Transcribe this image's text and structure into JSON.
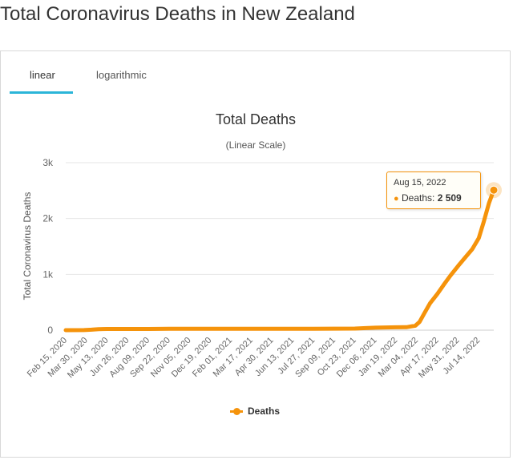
{
  "page": {
    "title": "Total Coronavirus Deaths in New Zealand"
  },
  "tabs": [
    {
      "label": "linear",
      "active": true
    },
    {
      "label": "logarithmic",
      "active": false
    }
  ],
  "colors": {
    "series": "#f5930b",
    "tab_accent": "#2bb5d8"
  },
  "tooltip": {
    "date": "Aug 15, 2022",
    "series_label": "Deaths:",
    "value": "2 509"
  },
  "chart_data": {
    "type": "line",
    "title": "Total Deaths",
    "subtitle": "(Linear Scale)",
    "ylabel": "Total Coronavirus Deaths",
    "xlabel": "",
    "ylim": [
      0,
      3000
    ],
    "yticks": [
      0,
      1000,
      2000,
      3000
    ],
    "ytick_labels": [
      "0",
      "1k",
      "2k",
      "3k"
    ],
    "xtick_labels": [
      "Feb 15, 2020",
      "Mar 30, 2020",
      "May 13, 2020",
      "Jun 26, 2020",
      "Aug 09, 2020",
      "Sep 22, 2020",
      "Nov 05, 2020",
      "Dec 19, 2020",
      "Feb 01, 2021",
      "Mar 17, 2021",
      "Apr 30, 2021",
      "Jun 13, 2021",
      "Jul 27, 2021",
      "Sep 09, 2021",
      "Oct 23, 2021",
      "Dec 06, 2021",
      "Jan 19, 2022",
      "Mar 04, 2022",
      "Apr 17, 2022",
      "May 31, 2022",
      "Jul 14, 2022"
    ],
    "grid": true,
    "legend": "bottom",
    "series": [
      {
        "name": "Deaths",
        "points": [
          [
            "2020-02-15",
            0
          ],
          [
            "2020-03-25",
            1
          ],
          [
            "2020-04-10",
            9
          ],
          [
            "2020-04-25",
            18
          ],
          [
            "2020-05-13",
            21
          ],
          [
            "2020-06-26",
            22
          ],
          [
            "2020-08-09",
            22
          ],
          [
            "2020-09-22",
            25
          ],
          [
            "2020-11-05",
            25
          ],
          [
            "2020-12-19",
            25
          ],
          [
            "2021-02-01",
            25
          ],
          [
            "2021-03-17",
            26
          ],
          [
            "2021-04-30",
            26
          ],
          [
            "2021-06-13",
            26
          ],
          [
            "2021-07-27",
            26
          ],
          [
            "2021-09-09",
            27
          ],
          [
            "2021-10-23",
            28
          ],
          [
            "2021-11-15",
            38
          ],
          [
            "2021-12-06",
            45
          ],
          [
            "2022-01-19",
            52
          ],
          [
            "2022-02-10",
            53
          ],
          [
            "2022-03-01",
            80
          ],
          [
            "2022-03-10",
            150
          ],
          [
            "2022-03-20",
            300
          ],
          [
            "2022-04-01",
            480
          ],
          [
            "2022-04-17",
            650
          ],
          [
            "2022-05-01",
            820
          ],
          [
            "2022-05-15",
            980
          ],
          [
            "2022-05-31",
            1150
          ],
          [
            "2022-06-15",
            1300
          ],
          [
            "2022-06-30",
            1450
          ],
          [
            "2022-07-14",
            1650
          ],
          [
            "2022-07-25",
            1950
          ],
          [
            "2022-08-05",
            2280
          ],
          [
            "2022-08-15",
            2509
          ]
        ]
      }
    ]
  }
}
